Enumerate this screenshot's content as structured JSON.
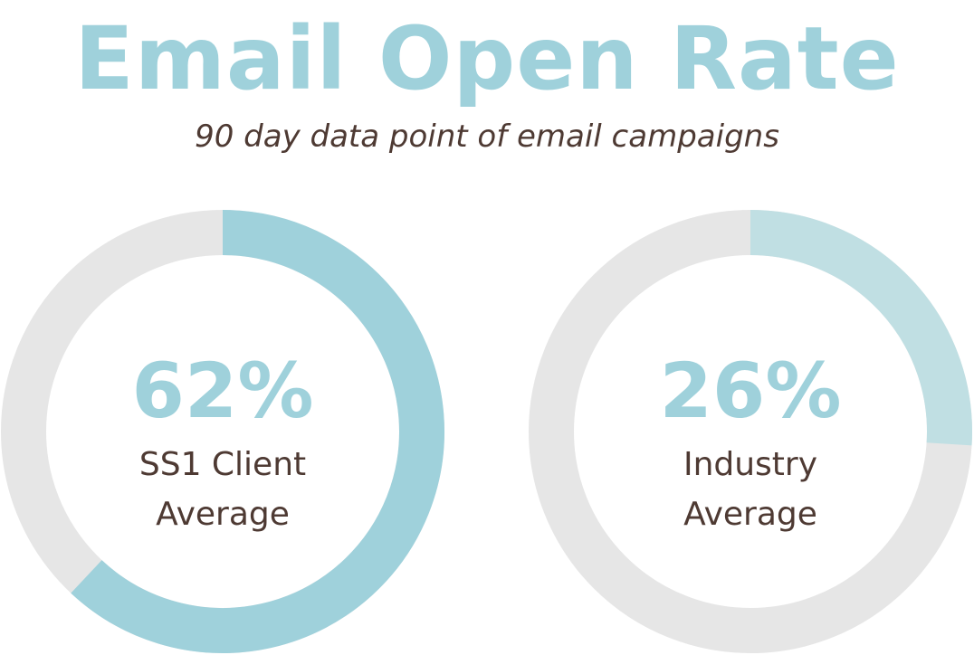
{
  "title": "Email Open Rate",
  "subtitle": "90 day data point of email campaigns",
  "colors": {
    "title": "#9fd1db",
    "text": "#4e3a33",
    "track": "#e6e6e6",
    "percent": "#9fd1db"
  },
  "chart_data": {
    "type": "pie",
    "variant": "donut",
    "title": "Email Open Rate",
    "subtitle": "90 day data point of email campaigns",
    "series": [
      {
        "value": 62,
        "percent_label": "62%",
        "label_lines": [
          "SS1 Client",
          "Average"
        ],
        "color": "#9fd1db"
      },
      {
        "value": 26,
        "percent_label": "26%",
        "label_lines": [
          "Industry",
          "Average"
        ],
        "color": "#c0dfe3"
      }
    ],
    "max": 100,
    "track_color": "#e6e6e6"
  }
}
